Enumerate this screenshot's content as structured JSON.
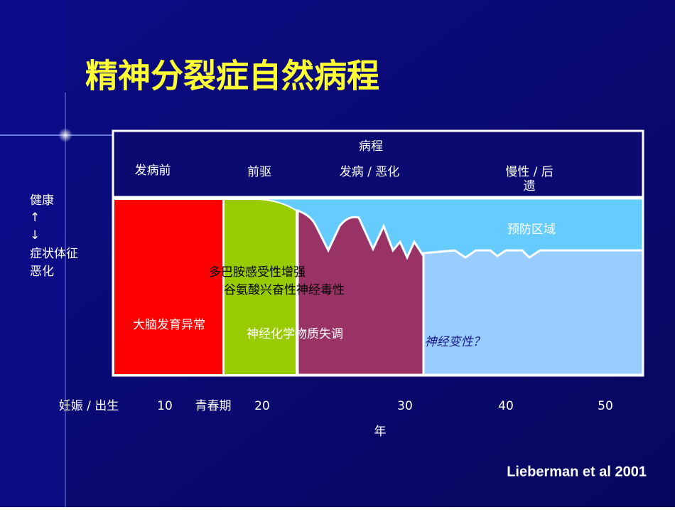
{
  "title": "精神分裂症自然病程",
  "header": {
    "course": "病程",
    "phases": [
      "发病前",
      "前驱",
      "发病 / 恶化"
    ],
    "chronic_lines": [
      "慢性 / 后",
      "遗"
    ]
  },
  "left_axis": {
    "lines": [
      "健康",
      "↑",
      "↓",
      "症状体征",
      "恶化"
    ]
  },
  "regions": {
    "prevention": "预防区域",
    "dopamine": "多巴胺感受性增强",
    "glutamate": "谷氨酸兴奋性神经毒性",
    "brain": "大脑发育异常",
    "neurochem": "神经化学物质失调",
    "degeneration": "神经变性？"
  },
  "timeline": {
    "labels": [
      "妊娠 / 出生",
      "10",
      "青春期",
      "20",
      "30",
      "40",
      "50"
    ],
    "unit": "年"
  },
  "citation": "Lieberman et al 2001"
}
